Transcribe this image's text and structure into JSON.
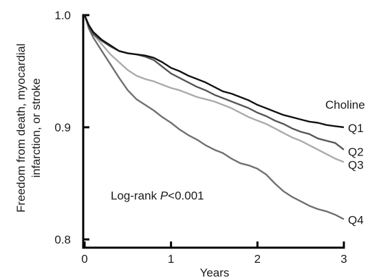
{
  "chart_data": {
    "type": "line",
    "title": "",
    "xlabel": "Years",
    "ylabel_lines": [
      "Freedom from death, myocardial",
      "infarction, or stroke"
    ],
    "xlim": [
      0,
      3
    ],
    "ylim": [
      0.8,
      1.0
    ],
    "x_ticks": [
      0,
      1,
      2,
      3
    ],
    "x_tick_labels": [
      "0",
      "1",
      "2",
      "3"
    ],
    "y_ticks": [
      0.8,
      0.9,
      1.0
    ],
    "y_tick_labels": [
      "0.8",
      "0.9",
      "1.0"
    ],
    "grid": false,
    "legend_title": "Choline",
    "annotation": {
      "prefix": "Log-rank ",
      "italic": "P",
      "suffix": "<0.001"
    },
    "series": [
      {
        "name": "Q1",
        "color": "#111111",
        "x": [
          0,
          0.05,
          0.1,
          0.2,
          0.3,
          0.4,
          0.5,
          0.6,
          0.7,
          0.8,
          0.9,
          1.0,
          1.1,
          1.2,
          1.3,
          1.4,
          1.5,
          1.6,
          1.7,
          1.8,
          1.9,
          2.0,
          2.1,
          2.2,
          2.3,
          2.4,
          2.5,
          2.6,
          2.7,
          2.8,
          2.9,
          3.0
        ],
        "y": [
          1.0,
          0.991,
          0.985,
          0.978,
          0.973,
          0.968,
          0.966,
          0.965,
          0.964,
          0.962,
          0.958,
          0.953,
          0.95,
          0.946,
          0.943,
          0.94,
          0.936,
          0.932,
          0.93,
          0.927,
          0.924,
          0.92,
          0.917,
          0.914,
          0.911,
          0.909,
          0.907,
          0.905,
          0.904,
          0.902,
          0.901,
          0.9
        ]
      },
      {
        "name": "Q2",
        "color": "#555555",
        "x": [
          0,
          0.05,
          0.1,
          0.2,
          0.3,
          0.4,
          0.5,
          0.6,
          0.7,
          0.8,
          0.9,
          1.0,
          1.1,
          1.2,
          1.3,
          1.4,
          1.5,
          1.6,
          1.7,
          1.8,
          1.9,
          2.0,
          2.1,
          2.2,
          2.3,
          2.4,
          2.5,
          2.6,
          2.7,
          2.8,
          2.9,
          3.0
        ],
        "y": [
          1.0,
          0.989,
          0.983,
          0.977,
          0.972,
          0.968,
          0.966,
          0.965,
          0.963,
          0.96,
          0.954,
          0.948,
          0.944,
          0.94,
          0.936,
          0.933,
          0.929,
          0.926,
          0.923,
          0.92,
          0.917,
          0.913,
          0.91,
          0.906,
          0.903,
          0.899,
          0.896,
          0.894,
          0.89,
          0.888,
          0.886,
          0.88
        ]
      },
      {
        "name": "Q3",
        "color": "#aaaaaa",
        "x": [
          0,
          0.05,
          0.1,
          0.2,
          0.3,
          0.4,
          0.5,
          0.6,
          0.7,
          0.8,
          0.9,
          1.0,
          1.1,
          1.2,
          1.3,
          1.4,
          1.5,
          1.6,
          1.7,
          1.8,
          1.9,
          2.0,
          2.1,
          2.2,
          2.3,
          2.4,
          2.5,
          2.6,
          2.7,
          2.8,
          2.9,
          3.0
        ],
        "y": [
          1.0,
          0.989,
          0.983,
          0.974,
          0.965,
          0.958,
          0.951,
          0.946,
          0.943,
          0.941,
          0.938,
          0.935,
          0.933,
          0.93,
          0.927,
          0.925,
          0.923,
          0.92,
          0.917,
          0.913,
          0.909,
          0.906,
          0.903,
          0.899,
          0.895,
          0.891,
          0.888,
          0.884,
          0.88,
          0.876,
          0.872,
          0.869
        ]
      },
      {
        "name": "Q4",
        "color": "#6f6f6f",
        "x": [
          0,
          0.05,
          0.1,
          0.2,
          0.3,
          0.4,
          0.5,
          0.6,
          0.7,
          0.8,
          0.9,
          1.0,
          1.1,
          1.2,
          1.3,
          1.4,
          1.5,
          1.6,
          1.7,
          1.8,
          1.9,
          2.0,
          2.1,
          2.2,
          2.3,
          2.4,
          2.5,
          2.6,
          2.7,
          2.8,
          2.9,
          3.0
        ],
        "y": [
          1.0,
          0.988,
          0.98,
          0.968,
          0.956,
          0.944,
          0.933,
          0.925,
          0.92,
          0.915,
          0.909,
          0.904,
          0.898,
          0.893,
          0.889,
          0.884,
          0.88,
          0.877,
          0.872,
          0.868,
          0.866,
          0.863,
          0.858,
          0.85,
          0.843,
          0.838,
          0.834,
          0.83,
          0.827,
          0.825,
          0.822,
          0.818
        ]
      }
    ]
  }
}
